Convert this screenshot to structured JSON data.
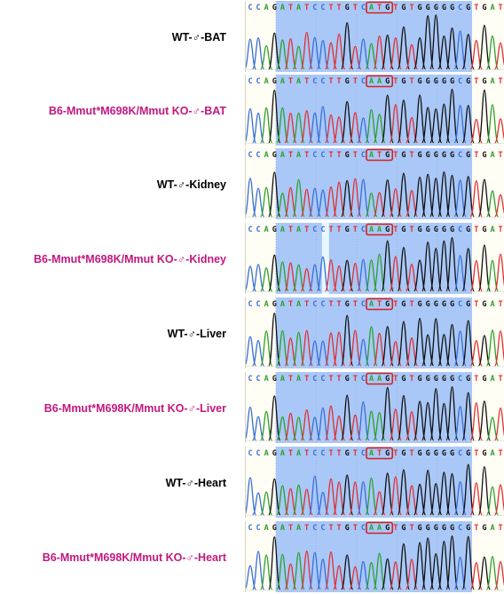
{
  "sequence_wt": "CCAGATATCCTTGTCATGTGTGGGGGCGTGAT",
  "sequence_mut": "CCAGATATCCTTGTCAAGTGTGGGGGCGTGAT",
  "codon_start_index": 15,
  "codon_length": 3,
  "colors": {
    "A": "#2ca02c",
    "C": "#3a6fd8",
    "G": "#111111",
    "T": "#e03030",
    "highlight": "#a9c8f7",
    "codon_box": "#d62020",
    "wt_label": "#000000",
    "mutant_label": "#c2187f"
  },
  "samples": [
    {
      "label": "WT-♂-BAT",
      "type": "wt"
    },
    {
      "label": "B6-Mmut*M698K/Mmut KO-♂-BAT",
      "type": "mutant"
    },
    {
      "label": "WT-♂-Kidney",
      "type": "wt"
    },
    {
      "label": "B6-Mmut*M698K/Mmut KO-♂-Kidney",
      "type": "mutant"
    },
    {
      "label": "WT-♂-Liver",
      "type": "wt"
    },
    {
      "label": "B6-Mmut*M698K/Mmut KO-♂-Liver",
      "type": "mutant"
    },
    {
      "label": "WT-♂-Heart",
      "type": "wt"
    },
    {
      "label": "B6-Mmut*M698K/Mmut KO-♂-Heart",
      "type": "mutant"
    }
  ]
}
